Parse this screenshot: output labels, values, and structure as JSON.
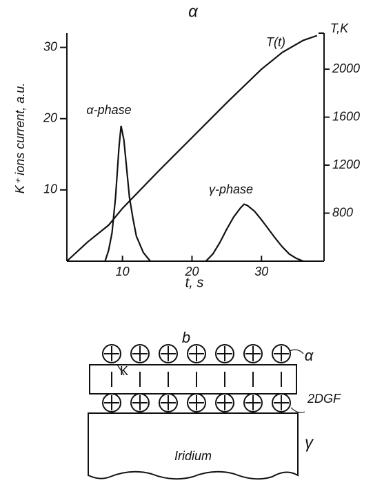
{
  "chart_data": {
    "type": "line",
    "title": "α",
    "x_label": "t, s",
    "y_label": "K⁺ ions current, a.u.",
    "y2_label": "T,K",
    "xlim": [
      2,
      39
    ],
    "xticks": [
      10,
      20,
      30
    ],
    "ylim": [
      0,
      32
    ],
    "yticks": [
      10,
      20,
      30
    ],
    "y2lim": [
      400,
      2300
    ],
    "y2ticks": [
      800,
      1200,
      1600,
      2000
    ],
    "color": "#111111",
    "series": [
      {
        "x": [
          7.5,
          8,
          8.5,
          9,
          9.5,
          9.8,
          10.2,
          10.6,
          11,
          11.5,
          12,
          13,
          14,
          null,
          22,
          23,
          24,
          25,
          26,
          27,
          27.5,
          28,
          29,
          30,
          31,
          32,
          33,
          34,
          35,
          36
        ],
        "values": [
          0,
          1.5,
          4,
          9,
          16,
          19,
          17,
          13,
          9,
          6,
          3.5,
          1.2,
          0,
          null,
          0,
          1,
          2.6,
          4.5,
          6.2,
          7.5,
          8,
          7.8,
          7,
          5.8,
          4.5,
          3.2,
          2,
          1,
          0.4,
          0
        ]
      },
      {
        "axis": "y2",
        "x": [
          2,
          5,
          8,
          10,
          15,
          20,
          25,
          30,
          33,
          36,
          38
        ],
        "values": [
          400,
          560,
          700,
          840,
          1140,
          1430,
          1720,
          2000,
          2140,
          2240,
          2280
        ]
      }
    ],
    "annotations": [
      "T(t)",
      "α-phase",
      "γ-phase"
    ]
  },
  "diagram": {
    "title": "b",
    "labels": {
      "adatom": "K",
      "top_layer": "α",
      "film": "2DGF",
      "bottom_layer": "γ",
      "substrate": "Iridium"
    }
  }
}
